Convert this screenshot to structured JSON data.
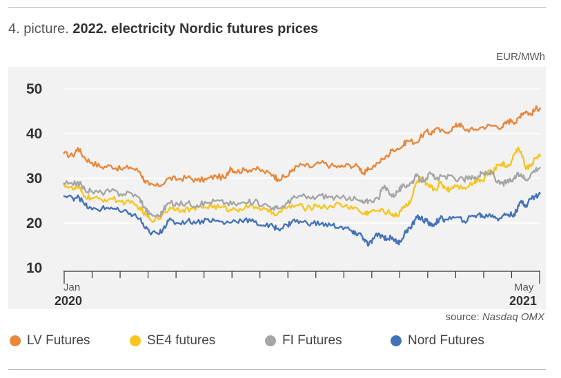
{
  "header": {
    "title_prefix": "4. picture.",
    "title_main": "2022. electricity Nordic futures prices",
    "unit": "EUR/MWh"
  },
  "source": {
    "label": "source:",
    "name": "Nasdaq OMX"
  },
  "chart_data": {
    "type": "line",
    "ylabel": "EUR/MWh",
    "ylim": [
      10,
      50
    ],
    "yticks": [
      10,
      20,
      30,
      40,
      50
    ],
    "grid": true,
    "legend_placement": "bottom",
    "x_labels": {
      "start": {
        "month": "Jan",
        "year": "2020"
      },
      "end": {
        "month": "May",
        "year": "2021"
      }
    },
    "x_domain": [
      0,
      1
    ],
    "series": [
      {
        "name": "LV Futures",
        "color": "#e8873a",
        "points": [
          [
            0.0,
            35.5
          ],
          [
            0.02,
            35.0
          ],
          [
            0.03,
            36.8
          ],
          [
            0.045,
            34.5
          ],
          [
            0.06,
            33.5
          ],
          [
            0.08,
            32.5
          ],
          [
            0.1,
            32.8
          ],
          [
            0.12,
            32.0
          ],
          [
            0.14,
            32.5
          ],
          [
            0.16,
            31.5
          ],
          [
            0.17,
            29.5
          ],
          [
            0.18,
            28.5
          ],
          [
            0.2,
            28.2
          ],
          [
            0.22,
            30.0
          ],
          [
            0.24,
            29.8
          ],
          [
            0.26,
            30.2
          ],
          [
            0.28,
            29.5
          ],
          [
            0.3,
            29.8
          ],
          [
            0.32,
            30.5
          ],
          [
            0.34,
            30.0
          ],
          [
            0.35,
            32.5
          ],
          [
            0.36,
            31.5
          ],
          [
            0.38,
            31.8
          ],
          [
            0.4,
            32.2
          ],
          [
            0.42,
            31.5
          ],
          [
            0.44,
            30.8
          ],
          [
            0.45,
            29.8
          ],
          [
            0.47,
            30.5
          ],
          [
            0.48,
            32.0
          ],
          [
            0.5,
            33.0
          ],
          [
            0.52,
            32.5
          ],
          [
            0.54,
            33.5
          ],
          [
            0.56,
            32.8
          ],
          [
            0.58,
            32.5
          ],
          [
            0.6,
            33.0
          ],
          [
            0.62,
            32.5
          ],
          [
            0.63,
            31.0
          ],
          [
            0.64,
            32.0
          ],
          [
            0.66,
            33.5
          ],
          [
            0.68,
            35.0
          ],
          [
            0.69,
            36.5
          ],
          [
            0.71,
            37.0
          ],
          [
            0.72,
            38.5
          ],
          [
            0.74,
            38.0
          ],
          [
            0.76,
            40.5
          ],
          [
            0.77,
            40.0
          ],
          [
            0.78,
            41.0
          ],
          [
            0.8,
            40.2
          ],
          [
            0.82,
            41.5
          ],
          [
            0.83,
            42.2
          ],
          [
            0.84,
            41.0
          ],
          [
            0.86,
            40.8
          ],
          [
            0.88,
            41.5
          ],
          [
            0.9,
            41.8
          ],
          [
            0.92,
            41.5
          ],
          [
            0.93,
            42.5
          ],
          [
            0.94,
            43.0
          ],
          [
            0.95,
            42.5
          ],
          [
            0.96,
            44.5
          ],
          [
            0.97,
            45.0
          ],
          [
            0.98,
            44.2
          ],
          [
            0.99,
            45.5
          ],
          [
            1.0,
            45.8
          ]
        ]
      },
      {
        "name": "SE4 futures",
        "color": "#f7c51e",
        "points": [
          [
            0.0,
            28.8
          ],
          [
            0.02,
            27.5
          ],
          [
            0.03,
            28.0
          ],
          [
            0.045,
            26.0
          ],
          [
            0.06,
            25.5
          ],
          [
            0.08,
            25.2
          ],
          [
            0.1,
            25.5
          ],
          [
            0.12,
            24.8
          ],
          [
            0.14,
            24.5
          ],
          [
            0.16,
            23.5
          ],
          [
            0.17,
            22.0
          ],
          [
            0.18,
            21.0
          ],
          [
            0.2,
            20.8
          ],
          [
            0.21,
            22.5
          ],
          [
            0.23,
            23.5
          ],
          [
            0.25,
            23.0
          ],
          [
            0.27,
            23.2
          ],
          [
            0.29,
            23.5
          ],
          [
            0.31,
            23.8
          ],
          [
            0.33,
            23.5
          ],
          [
            0.35,
            23.0
          ],
          [
            0.37,
            23.2
          ],
          [
            0.39,
            23.8
          ],
          [
            0.41,
            23.5
          ],
          [
            0.43,
            22.5
          ],
          [
            0.45,
            22.2
          ],
          [
            0.47,
            23.5
          ],
          [
            0.49,
            24.0
          ],
          [
            0.51,
            23.2
          ],
          [
            0.53,
            24.0
          ],
          [
            0.55,
            23.5
          ],
          [
            0.57,
            24.2
          ],
          [
            0.59,
            23.8
          ],
          [
            0.61,
            23.5
          ],
          [
            0.63,
            22.0
          ],
          [
            0.64,
            22.5
          ],
          [
            0.66,
            22.8
          ],
          [
            0.68,
            22.5
          ],
          [
            0.69,
            22.0
          ],
          [
            0.7,
            21.5
          ],
          [
            0.71,
            23.5
          ],
          [
            0.72,
            24.0
          ],
          [
            0.73,
            25.5
          ],
          [
            0.74,
            29.0
          ],
          [
            0.75,
            30.0
          ],
          [
            0.76,
            28.5
          ],
          [
            0.77,
            28.0
          ],
          [
            0.78,
            27.5
          ],
          [
            0.79,
            29.0
          ],
          [
            0.8,
            28.0
          ],
          [
            0.81,
            27.5
          ],
          [
            0.82,
            28.5
          ],
          [
            0.84,
            28.0
          ],
          [
            0.86,
            29.0
          ],
          [
            0.87,
            30.0
          ],
          [
            0.88,
            29.5
          ],
          [
            0.89,
            31.5
          ],
          [
            0.9,
            31.0
          ],
          [
            0.91,
            33.0
          ],
          [
            0.92,
            33.5
          ],
          [
            0.93,
            32.5
          ],
          [
            0.94,
            34.0
          ],
          [
            0.95,
            36.5
          ],
          [
            0.96,
            36.0
          ],
          [
            0.97,
            32.0
          ],
          [
            0.98,
            33.0
          ],
          [
            0.99,
            34.5
          ],
          [
            1.0,
            34.8
          ]
        ]
      },
      {
        "name": "FI Futures",
        "color": "#a6a6a6",
        "points": [
          [
            0.0,
            29.0
          ],
          [
            0.02,
            28.5
          ],
          [
            0.03,
            29.2
          ],
          [
            0.045,
            27.5
          ],
          [
            0.06,
            27.0
          ],
          [
            0.08,
            26.8
          ],
          [
            0.1,
            27.2
          ],
          [
            0.12,
            26.5
          ],
          [
            0.14,
            26.8
          ],
          [
            0.16,
            25.5
          ],
          [
            0.17,
            23.5
          ],
          [
            0.18,
            22.0
          ],
          [
            0.2,
            21.5
          ],
          [
            0.21,
            23.0
          ],
          [
            0.22,
            24.5
          ],
          [
            0.24,
            24.2
          ],
          [
            0.26,
            24.5
          ],
          [
            0.28,
            24.0
          ],
          [
            0.3,
            24.5
          ],
          [
            0.32,
            25.0
          ],
          [
            0.34,
            24.5
          ],
          [
            0.36,
            24.2
          ],
          [
            0.38,
            24.5
          ],
          [
            0.4,
            24.8
          ],
          [
            0.42,
            24.2
          ],
          [
            0.44,
            23.5
          ],
          [
            0.45,
            23.2
          ],
          [
            0.47,
            24.5
          ],
          [
            0.48,
            25.5
          ],
          [
            0.5,
            26.0
          ],
          [
            0.52,
            25.5
          ],
          [
            0.54,
            26.2
          ],
          [
            0.56,
            25.8
          ],
          [
            0.58,
            25.5
          ],
          [
            0.6,
            25.8
          ],
          [
            0.62,
            25.0
          ],
          [
            0.63,
            24.5
          ],
          [
            0.64,
            25.0
          ],
          [
            0.66,
            25.5
          ],
          [
            0.67,
            28.0
          ],
          [
            0.68,
            27.5
          ],
          [
            0.69,
            26.0
          ],
          [
            0.7,
            27.0
          ],
          [
            0.71,
            28.0
          ],
          [
            0.72,
            28.5
          ],
          [
            0.73,
            29.0
          ],
          [
            0.74,
            30.5
          ],
          [
            0.75,
            29.5
          ],
          [
            0.76,
            30.0
          ],
          [
            0.77,
            31.0
          ],
          [
            0.78,
            29.8
          ],
          [
            0.8,
            30.5
          ],
          [
            0.82,
            30.0
          ],
          [
            0.84,
            29.5
          ],
          [
            0.85,
            30.5
          ],
          [
            0.86,
            30.0
          ],
          [
            0.87,
            30.5
          ],
          [
            0.88,
            31.2
          ],
          [
            0.89,
            30.8
          ],
          [
            0.9,
            31.5
          ],
          [
            0.91,
            29.0
          ],
          [
            0.92,
            28.8
          ],
          [
            0.93,
            29.2
          ],
          [
            0.94,
            29.5
          ],
          [
            0.95,
            30.5
          ],
          [
            0.96,
            31.0
          ],
          [
            0.97,
            29.5
          ],
          [
            0.98,
            31.0
          ],
          [
            0.99,
            32.0
          ],
          [
            1.0,
            32.5
          ]
        ]
      },
      {
        "name": "Nord Futures",
        "color": "#4472b8",
        "points": [
          [
            0.0,
            26.0
          ],
          [
            0.02,
            25.5
          ],
          [
            0.03,
            26.2
          ],
          [
            0.045,
            24.0
          ],
          [
            0.06,
            23.0
          ],
          [
            0.08,
            23.2
          ],
          [
            0.1,
            23.5
          ],
          [
            0.12,
            22.5
          ],
          [
            0.14,
            22.2
          ],
          [
            0.16,
            21.0
          ],
          [
            0.17,
            19.0
          ],
          [
            0.18,
            18.0
          ],
          [
            0.2,
            17.5
          ],
          [
            0.21,
            19.0
          ],
          [
            0.22,
            20.5
          ],
          [
            0.24,
            20.0
          ],
          [
            0.26,
            20.5
          ],
          [
            0.28,
            20.2
          ],
          [
            0.3,
            20.8
          ],
          [
            0.32,
            20.5
          ],
          [
            0.34,
            20.0
          ],
          [
            0.36,
            20.5
          ],
          [
            0.38,
            20.8
          ],
          [
            0.4,
            20.2
          ],
          [
            0.42,
            19.5
          ],
          [
            0.44,
            19.2
          ],
          [
            0.45,
            18.8
          ],
          [
            0.47,
            19.5
          ],
          [
            0.48,
            20.5
          ],
          [
            0.5,
            20.2
          ],
          [
            0.52,
            20.0
          ],
          [
            0.54,
            19.8
          ],
          [
            0.56,
            19.5
          ],
          [
            0.58,
            19.2
          ],
          [
            0.6,
            18.5
          ],
          [
            0.61,
            17.5
          ],
          [
            0.62,
            17.8
          ],
          [
            0.63,
            16.5
          ],
          [
            0.64,
            15.0
          ],
          [
            0.65,
            16.5
          ],
          [
            0.66,
            17.5
          ],
          [
            0.67,
            17.0
          ],
          [
            0.68,
            16.5
          ],
          [
            0.69,
            16.8
          ],
          [
            0.7,
            15.5
          ],
          [
            0.71,
            16.5
          ],
          [
            0.72,
            18.5
          ],
          [
            0.73,
            19.0
          ],
          [
            0.74,
            21.5
          ],
          [
            0.75,
            21.0
          ],
          [
            0.76,
            20.5
          ],
          [
            0.77,
            19.5
          ],
          [
            0.78,
            20.0
          ],
          [
            0.79,
            21.0
          ],
          [
            0.8,
            20.8
          ],
          [
            0.82,
            21.2
          ],
          [
            0.84,
            20.5
          ],
          [
            0.86,
            21.5
          ],
          [
            0.87,
            22.0
          ],
          [
            0.88,
            21.5
          ],
          [
            0.9,
            21.8
          ],
          [
            0.91,
            21.0
          ],
          [
            0.92,
            21.5
          ],
          [
            0.93,
            22.0
          ],
          [
            0.94,
            21.8
          ],
          [
            0.95,
            22.5
          ],
          [
            0.96,
            25.0
          ],
          [
            0.97,
            24.0
          ],
          [
            0.98,
            25.5
          ],
          [
            0.99,
            26.0
          ],
          [
            1.0,
            26.5
          ]
        ]
      }
    ]
  }
}
